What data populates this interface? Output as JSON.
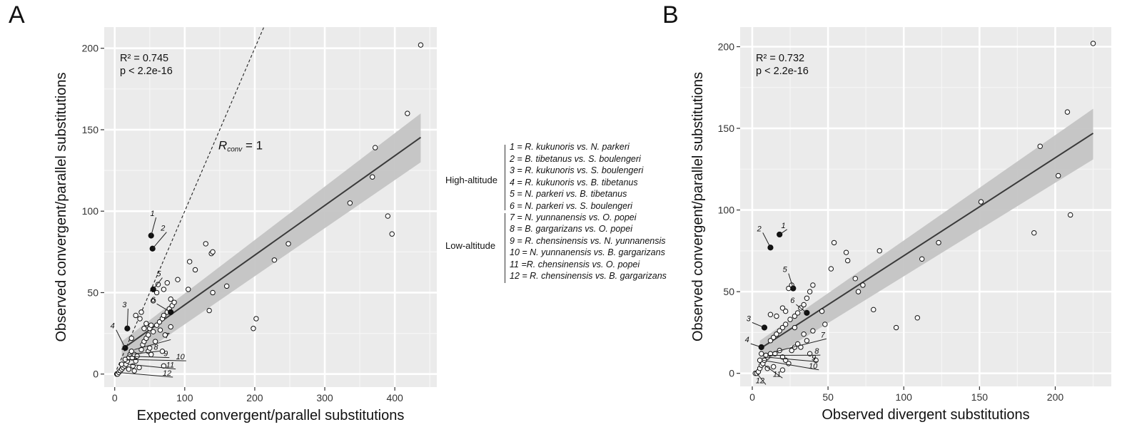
{
  "panel_a_letter": "A",
  "panel_b_letter": "B",
  "chart_data": [
    {
      "type": "scatter",
      "panel": "A",
      "xlabel": "Expected convergent/parallel substitutions",
      "ylabel": "Observed convergent/parallel substitutions",
      "xlim": [
        -15,
        460
      ],
      "ylim": [
        -8,
        213
      ],
      "x_ticks": [
        0,
        100,
        200,
        300,
        400
      ],
      "y_ticks": [
        0,
        50,
        100,
        150,
        200
      ],
      "grid": true,
      "stats": [
        "R² = 0.745",
        "p < 2.2e-16"
      ],
      "reference_line": {
        "label": "R",
        "label_sub": "conv",
        "label_suffix": " = 1",
        "slope": 1,
        "label_x": 148,
        "label_y": 138
      },
      "regression": {
        "intercept": 12.0,
        "slope": 0.305,
        "x_range": [
          10,
          437
        ],
        "ci_lower_end": 130,
        "ci_upper_end": 160,
        "ci_start": [
          4,
          20
        ]
      },
      "points_open": [
        [
          3,
          0
        ],
        [
          4,
          0
        ],
        [
          6,
          1
        ],
        [
          8,
          2
        ],
        [
          10,
          3
        ],
        [
          12,
          4
        ],
        [
          14,
          5
        ],
        [
          10,
          6
        ],
        [
          16,
          6
        ],
        [
          18,
          8
        ],
        [
          20,
          10
        ],
        [
          22,
          12
        ],
        [
          24,
          14
        ],
        [
          15,
          9
        ],
        [
          25,
          10
        ],
        [
          28,
          12
        ],
        [
          30,
          8
        ],
        [
          32,
          11
        ],
        [
          26,
          5
        ],
        [
          35,
          4
        ],
        [
          28,
          2
        ],
        [
          20,
          3
        ],
        [
          38,
          15
        ],
        [
          40,
          18
        ],
        [
          42,
          20
        ],
        [
          45,
          22
        ],
        [
          48,
          24
        ],
        [
          50,
          28
        ],
        [
          52,
          30
        ],
        [
          55,
          26
        ],
        [
          60,
          30
        ],
        [
          64,
          32
        ],
        [
          68,
          34
        ],
        [
          70,
          36
        ],
        [
          75,
          38
        ],
        [
          78,
          40
        ],
        [
          82,
          42
        ],
        [
          85,
          44
        ],
        [
          55,
          45
        ],
        [
          60,
          50
        ],
        [
          62,
          55
        ],
        [
          70,
          52
        ],
        [
          75,
          56
        ],
        [
          80,
          46
        ],
        [
          90,
          58
        ],
        [
          105,
          52
        ],
        [
          107,
          69
        ],
        [
          115,
          64
        ],
        [
          130,
          80
        ],
        [
          138,
          74
        ],
        [
          140,
          75
        ],
        [
          135,
          39
        ],
        [
          140,
          50
        ],
        [
          160,
          54
        ],
        [
          198,
          28
        ],
        [
          202,
          34
        ],
        [
          228,
          70
        ],
        [
          248,
          80
        ],
        [
          336,
          105
        ],
        [
          368,
          121
        ],
        [
          372,
          139
        ],
        [
          390,
          97
        ],
        [
          396,
          86
        ],
        [
          418,
          160
        ],
        [
          437,
          202
        ],
        [
          48,
          14
        ],
        [
          50,
          16
        ],
        [
          42,
          28
        ],
        [
          58,
          20
        ],
        [
          65,
          27
        ],
        [
          72,
          24
        ],
        [
          80,
          29
        ],
        [
          36,
          34
        ],
        [
          38,
          38
        ],
        [
          30,
          36
        ],
        [
          24,
          22
        ],
        [
          45,
          31
        ],
        [
          52,
          12
        ],
        [
          70,
          5
        ],
        [
          68,
          14
        ]
      ],
      "points_filled": [
        [
          52,
          85
        ],
        [
          54,
          77
        ],
        [
          18,
          28
        ],
        [
          15,
          16
        ],
        [
          55,
          52
        ],
        [
          80,
          38
        ]
      ],
      "annotations": [
        {
          "label": "1",
          "text_x": 57,
          "text_y": 97,
          "point": [
            52,
            85
          ]
        },
        {
          "label": "2",
          "text_x": 72,
          "text_y": 88,
          "point": [
            54,
            77
          ]
        },
        {
          "label": "3",
          "text_x": 17,
          "text_y": 41,
          "point": [
            18,
            28
          ]
        },
        {
          "label": "4",
          "text_x": 0,
          "text_y": 28,
          "point": [
            15,
            16
          ]
        },
        {
          "label": "5",
          "text_x": 66,
          "text_y": 60,
          "point": [
            55,
            52
          ]
        },
        {
          "label": "6",
          "text_x": 58,
          "text_y": 44,
          "point": [
            80,
            38
          ]
        },
        {
          "label": "7",
          "text_x": 78,
          "text_y": 22,
          "point": [
            28,
            15
          ]
        },
        {
          "label": "8",
          "text_x": 62,
          "text_y": 15,
          "point": [
            20,
            12
          ]
        },
        {
          "label": "9",
          "text_x": 76,
          "text_y": 11,
          "point": [
            18,
            11
          ]
        },
        {
          "label": "10",
          "text_x": 100,
          "text_y": 9,
          "point": [
            16,
            9
          ]
        },
        {
          "label": "11",
          "text_x": 85,
          "text_y": 4,
          "point": [
            20,
            6
          ]
        },
        {
          "label": "12",
          "text_x": 81,
          "text_y": -1,
          "point": [
            4,
            1
          ]
        }
      ]
    },
    {
      "type": "scatter",
      "panel": "B",
      "xlabel": "Observed divergent substitutions",
      "ylabel": "Observed convergent/parallel substitutions",
      "xlim": [
        -8,
        237
      ],
      "ylim": [
        -8,
        212
      ],
      "x_ticks": [
        0,
        50,
        100,
        150,
        200
      ],
      "y_ticks": [
        0,
        50,
        100,
        150,
        200
      ],
      "grid": true,
      "stats": [
        "R² = 0.732",
        "p < 2.2e-16"
      ],
      "regression": {
        "intercept": 12.0,
        "slope": 0.6,
        "x_range": [
          5,
          225
        ],
        "ci_lower_end": 131,
        "ci_upper_end": 162,
        "ci_start": [
          5,
          20
        ]
      },
      "points_open": [
        [
          2,
          0
        ],
        [
          3,
          0
        ],
        [
          4,
          1
        ],
        [
          5,
          3
        ],
        [
          6,
          5
        ],
        [
          7,
          6
        ],
        [
          8,
          8
        ],
        [
          5,
          8
        ],
        [
          10,
          10
        ],
        [
          12,
          12
        ],
        [
          6,
          12
        ],
        [
          9,
          11
        ],
        [
          15,
          12
        ],
        [
          18,
          14
        ],
        [
          20,
          10
        ],
        [
          22,
          8
        ],
        [
          24,
          6
        ],
        [
          14,
          4
        ],
        [
          20,
          2
        ],
        [
          10,
          3
        ],
        [
          12,
          20
        ],
        [
          14,
          22
        ],
        [
          16,
          24
        ],
        [
          18,
          26
        ],
        [
          20,
          28
        ],
        [
          22,
          30
        ],
        [
          25,
          33
        ],
        [
          28,
          35
        ],
        [
          30,
          37
        ],
        [
          32,
          40
        ],
        [
          34,
          42
        ],
        [
          36,
          46
        ],
        [
          38,
          50
        ],
        [
          40,
          54
        ],
        [
          24,
          52
        ],
        [
          26,
          54
        ],
        [
          22,
          38
        ],
        [
          16,
          35
        ],
        [
          12,
          36
        ],
        [
          20,
          40
        ],
        [
          28,
          28
        ],
        [
          34,
          24
        ],
        [
          36,
          20
        ],
        [
          28,
          16
        ],
        [
          30,
          18
        ],
        [
          26,
          14
        ],
        [
          46,
          38
        ],
        [
          52,
          64
        ],
        [
          54,
          80
        ],
        [
          62,
          74
        ],
        [
          63,
          69
        ],
        [
          68,
          58
        ],
        [
          70,
          50
        ],
        [
          73,
          54
        ],
        [
          80,
          39
        ],
        [
          84,
          75
        ],
        [
          95,
          28
        ],
        [
          109,
          34
        ],
        [
          112,
          70
        ],
        [
          123,
          80
        ],
        [
          151,
          105
        ],
        [
          186,
          86
        ],
        [
          190,
          139
        ],
        [
          202,
          121
        ],
        [
          208,
          160
        ],
        [
          210,
          97
        ],
        [
          225,
          202
        ],
        [
          40,
          26
        ],
        [
          32,
          16
        ],
        [
          38,
          12
        ],
        [
          42,
          8
        ],
        [
          48,
          30
        ]
      ],
      "points_filled": [
        [
          18,
          85
        ],
        [
          12,
          77
        ],
        [
          8,
          28
        ],
        [
          6,
          16
        ],
        [
          27,
          52
        ],
        [
          36,
          37
        ]
      ],
      "annotations": [
        {
          "label": "1",
          "text_x": 22,
          "text_y": 89,
          "point": [
            18,
            85
          ]
        },
        {
          "label": "2",
          "text_x": 6,
          "text_y": 87,
          "point": [
            12,
            77
          ]
        },
        {
          "label": "3",
          "text_x": -1,
          "text_y": 32,
          "point": [
            8,
            28
          ]
        },
        {
          "label": "4",
          "text_x": -2,
          "text_y": 19,
          "point": [
            6,
            16
          ]
        },
        {
          "label": "5",
          "text_x": 23,
          "text_y": 62,
          "point": [
            27,
            52
          ]
        },
        {
          "label": "6",
          "text_x": 28,
          "text_y": 43,
          "point": [
            36,
            37
          ]
        },
        {
          "label": "7",
          "text_x": 48,
          "text_y": 22,
          "point": [
            14,
            13
          ]
        },
        {
          "label": "8",
          "text_x": 44,
          "text_y": 12,
          "point": [
            10,
            11
          ]
        },
        {
          "label": "9",
          "text_x": 42,
          "text_y": 8,
          "point": [
            8,
            10
          ]
        },
        {
          "label": "10",
          "text_x": 43,
          "text_y": 3,
          "point": [
            7,
            8
          ]
        },
        {
          "label": "11",
          "text_x": 19,
          "text_y": -2,
          "point": [
            8,
            5
          ]
        },
        {
          "label": "12",
          "text_x": 8,
          "text_y": -6,
          "point": [
            3,
            0
          ]
        }
      ]
    }
  ],
  "legend": {
    "groups": [
      {
        "label": "High-altitude",
        "items": [
          "1 = R. kukunoris vs. N. parkeri",
          "2 = B. tibetanus vs. S. boulengeri",
          "3 = R. kukunoris vs. S. boulengeri",
          "4 = R. kukunoris vs. B. tibetanus",
          "5 = N. parkeri vs. B. tibetanus",
          "6 = N. parkeri vs. S. boulengeri"
        ]
      },
      {
        "label": "Low-altitude",
        "items": [
          "7 = N. yunnanensis vs. O. popei",
          "8 = B. gargarizans vs. O. popei",
          "9 = R. chensinensis vs. N. yunnanensis",
          "10 = N. yunnanensis vs. B. gargarizans",
          "11 =R. chensinensis vs. O. popei",
          "12 = R. chensinensis vs. B. gargarizans"
        ]
      }
    ]
  }
}
